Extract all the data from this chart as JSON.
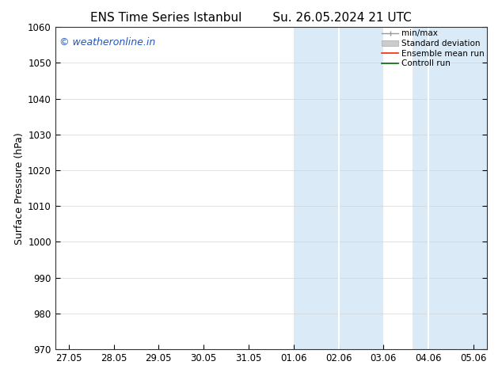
{
  "title1": "ENS Time Series Istanbul",
  "title2": "Su. 26.05.2024 21 UTC",
  "ylabel": "Surface Pressure (hPa)",
  "ylim": [
    970,
    1060
  ],
  "yticks": [
    970,
    980,
    990,
    1000,
    1010,
    1020,
    1030,
    1040,
    1050,
    1060
  ],
  "xtick_labels": [
    "27.05",
    "28.05",
    "29.05",
    "30.05",
    "31.05",
    "01.06",
    "02.06",
    "03.06",
    "04.06",
    "05.06"
  ],
  "xlim": [
    0,
    9
  ],
  "shaded_regions": [
    {
      "xmin": 5,
      "xmax": 6,
      "note": "01.06-02.06"
    },
    {
      "xmin": 6,
      "xmax": 7,
      "note": "02.06-03.06"
    },
    {
      "xmin": 7.5,
      "xmax": 8,
      "note": "04.06 area"
    },
    {
      "xmin": 8,
      "xmax": 8.5,
      "note": "05.06 area"
    }
  ],
  "shade_color": "#daeaf7",
  "watermark": "© weatheronline.in",
  "watermark_color": "#2255bb",
  "legend_labels": [
    "min/max",
    "Standard deviation",
    "Ensemble mean run",
    "Controll run"
  ],
  "background_color": "#ffffff",
  "title_fontsize": 11,
  "axis_fontsize": 9,
  "tick_fontsize": 8.5,
  "watermark_fontsize": 9
}
